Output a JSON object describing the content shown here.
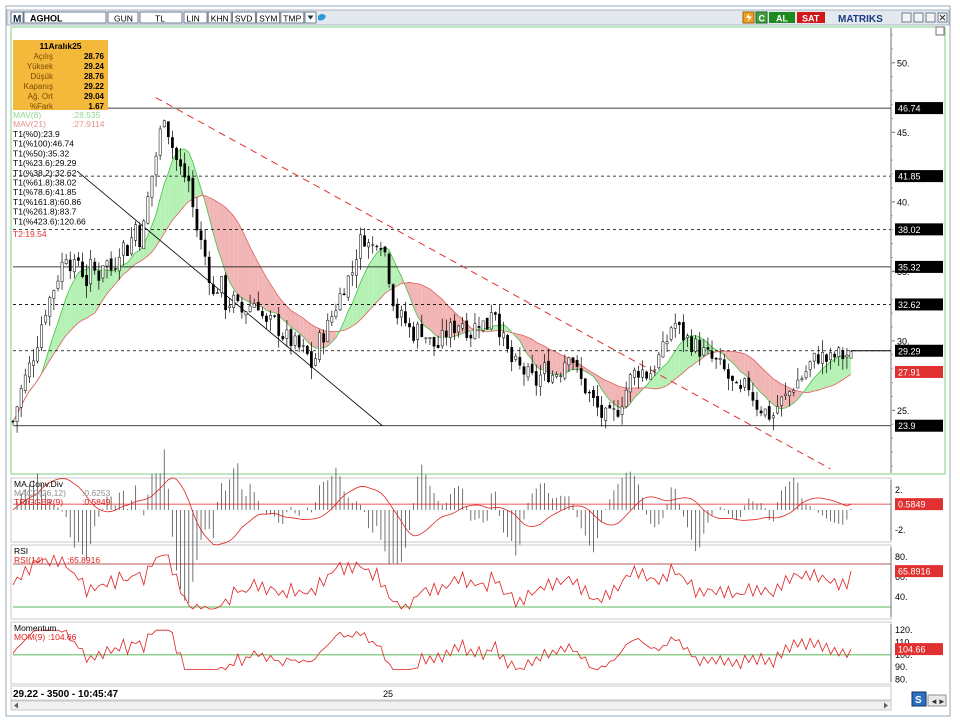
{
  "toolbar": {
    "symbol": "AGHOL",
    "period": "GUN",
    "currency": "TL",
    "buttons": [
      "LIN",
      "KHN",
      "SVD",
      "SYM",
      "TMP"
    ],
    "buy_label": "AL",
    "sell_label": "SAT",
    "brand": "MATRIKS"
  },
  "info_box": {
    "date": "11Aralık25",
    "rows": [
      {
        "label": "Açılış",
        "value": "28.76"
      },
      {
        "label": "Yüksek",
        "value": "29.24"
      },
      {
        "label": "Düşük",
        "value": "28.76"
      },
      {
        "label": "Kapanış",
        "value": "29.22"
      },
      {
        "label": "Ağ. Ort",
        "value": "29.04"
      },
      {
        "label": "%Fark",
        "value": "1.67"
      }
    ]
  },
  "mav_labels": {
    "mav8": {
      "name": "MAV(8)",
      "value": ":28.535"
    },
    "mav21": {
      "name": "MAV(21)",
      "value": ":27.9114"
    }
  },
  "fib_labels": [
    "T1(%0):23.9",
    "T1(%100):46.74",
    "T1(%50):35.32",
    "T1(%23.6):29.29",
    "T1(%38.2):32.62",
    "T1(%61.8):38.02",
    "T1(%78.6):41.85",
    "T1(%161.8):60.86",
    "T1(%261.8):83.7",
    "T1(%423.6):120.66"
  ],
  "t2_label": "T2:19.54",
  "price_axis": {
    "ticks": [
      "50.",
      "45.",
      "40.",
      "35.",
      "30.",
      "25."
    ],
    "tick_values": [
      50,
      45,
      40,
      35,
      30,
      25
    ],
    "min": 20.5,
    "max": 52.5
  },
  "level_tags": [
    {
      "value": 46.74,
      "text": "46.74"
    },
    {
      "value": 41.85,
      "text": "41.85"
    },
    {
      "value": 38.02,
      "text": "38.02"
    },
    {
      "value": 35.32,
      "text": "35.32"
    },
    {
      "value": 32.62,
      "text": "32.62"
    },
    {
      "value": 29.29,
      "text": "29.29"
    },
    {
      "value": 23.9,
      "text": "23.9"
    }
  ],
  "mav_tag": {
    "value": 27.91,
    "text": "27.91"
  },
  "macd": {
    "title": "MA.Conv.Div",
    "macd_label": "MACD(26,12)",
    "macd_value": ":0.6253",
    "trigger_label": "TRIGGER(9)",
    "trigger_value": ":0.5849",
    "tag": "0.5849",
    "ticks": [
      "2.",
      "-2."
    ]
  },
  "rsi": {
    "title": "RSI",
    "label": "RSI(14)",
    "value": ":65.8916",
    "tag": "65.8916",
    "ticks": [
      "80.",
      "60.",
      "40."
    ]
  },
  "momentum": {
    "title": "Momentum",
    "label": "MOM(9)",
    "value": ":104.66",
    "tag": "104.66",
    "ticks": [
      "120.",
      "110.",
      "100.",
      "90.",
      "80."
    ]
  },
  "status": {
    "text": "29.22 - 3500 - 10:45:47",
    "x_tick": "25"
  },
  "colors": {
    "frame": "#28a0d8",
    "up": "#000000",
    "fib": "#000000",
    "trend": "#e03030",
    "mav_fill_up": "#b5f0b5",
    "mav_fill_down": "#f2b5b5",
    "tag_red": "#e03030",
    "info_bg": "#f4b83a"
  },
  "chart_data": {
    "type": "candlestick",
    "x_tick_labels": [
      "25"
    ],
    "price_range": [
      20.5,
      52.5
    ],
    "fib_levels": [
      23.9,
      29.29,
      32.62,
      35.32,
      38.02,
      41.85,
      46.74
    ],
    "last": {
      "open": 28.76,
      "high": 29.24,
      "low": 28.76,
      "close": 29.22
    },
    "mav8_last": 28.535,
    "mav21_last": 27.9114,
    "rsi_last": 65.8916,
    "macd_last": 0.6253,
    "trigger_last": 0.5849,
    "mom_last": 104.66,
    "close_path": [
      [
        0,
        24.2
      ],
      [
        8,
        26.5
      ],
      [
        15,
        28.0
      ],
      [
        22,
        29.5
      ],
      [
        30,
        32.0
      ],
      [
        38,
        33.5
      ],
      [
        45,
        35.0
      ],
      [
        52,
        36.5
      ],
      [
        58,
        35.0
      ],
      [
        64,
        36.0
      ],
      [
        70,
        34.0
      ],
      [
        76,
        35.5
      ],
      [
        82,
        34.5
      ],
      [
        88,
        36.0
      ],
      [
        96,
        35.0
      ],
      [
        104,
        37.0
      ],
      [
        112,
        36.5
      ],
      [
        118,
        38.5
      ],
      [
        124,
        37.0
      ],
      [
        132,
        41.0
      ],
      [
        140,
        44.0
      ],
      [
        146,
        46.5
      ],
      [
        152,
        44.5
      ],
      [
        158,
        43.0
      ],
      [
        164,
        42.0
      ],
      [
        170,
        41.5
      ],
      [
        176,
        38.5
      ],
      [
        182,
        37.0
      ],
      [
        188,
        35.5
      ],
      [
        194,
        33.0
      ],
      [
        200,
        34.5
      ],
      [
        206,
        32.5
      ],
      [
        212,
        33.0
      ],
      [
        220,
        32.0
      ],
      [
        228,
        32.5
      ],
      [
        236,
        33.0
      ],
      [
        244,
        31.0
      ],
      [
        252,
        31.5
      ],
      [
        260,
        30.5
      ],
      [
        268,
        30.0
      ],
      [
        276,
        29.5
      ],
      [
        284,
        29.0
      ],
      [
        290,
        28.0
      ],
      [
        296,
        30.0
      ],
      [
        304,
        31.0
      ],
      [
        312,
        32.5
      ],
      [
        320,
        34.0
      ],
      [
        328,
        35.0
      ],
      [
        334,
        37.0
      ],
      [
        340,
        37.5
      ],
      [
        346,
        36.5
      ],
      [
        352,
        37.5
      ],
      [
        358,
        37.0
      ],
      [
        364,
        34.5
      ],
      [
        370,
        32.0
      ],
      [
        378,
        31.5
      ],
      [
        386,
        30.5
      ],
      [
        394,
        31.0
      ],
      [
        402,
        30.0
      ],
      [
        410,
        29.5
      ],
      [
        418,
        30.5
      ],
      [
        426,
        31.0
      ],
      [
        434,
        31.5
      ],
      [
        442,
        30.5
      ],
      [
        450,
        31.5
      ],
      [
        458,
        31.0
      ],
      [
        464,
        33.0
      ],
      [
        470,
        31.0
      ],
      [
        476,
        29.5
      ],
      [
        482,
        28.5
      ],
      [
        490,
        28.0
      ],
      [
        498,
        27.5
      ],
      [
        506,
        27.0
      ],
      [
        514,
        28.0
      ],
      [
        520,
        27.5
      ],
      [
        530,
        28.0
      ],
      [
        538,
        29.5
      ],
      [
        546,
        27.5
      ],
      [
        554,
        26.5
      ],
      [
        562,
        25.5
      ],
      [
        570,
        24.5
      ],
      [
        578,
        24.5
      ],
      [
        584,
        25.0
      ],
      [
        590,
        26.0
      ],
      [
        598,
        27.5
      ],
      [
        606,
        28.0
      ],
      [
        614,
        27.5
      ],
      [
        622,
        28.5
      ],
      [
        630,
        29.5
      ],
      [
        638,
        31.5
      ],
      [
        646,
        30.5
      ],
      [
        654,
        30.0
      ],
      [
        662,
        29.5
      ],
      [
        670,
        29.0
      ],
      [
        678,
        28.5
      ],
      [
        686,
        28.0
      ],
      [
        694,
        27.0
      ],
      [
        702,
        26.0
      ],
      [
        710,
        27.0
      ],
      [
        718,
        25.5
      ],
      [
        726,
        25.0
      ],
      [
        734,
        24.5
      ],
      [
        740,
        25.5
      ],
      [
        748,
        26.0
      ],
      [
        756,
        27.0
      ],
      [
        764,
        27.5
      ],
      [
        772,
        28.5
      ],
      [
        780,
        29.0
      ],
      [
        788,
        28.5
      ],
      [
        796,
        29.0
      ],
      [
        804,
        28.9
      ],
      [
        810,
        29.22
      ]
    ]
  }
}
